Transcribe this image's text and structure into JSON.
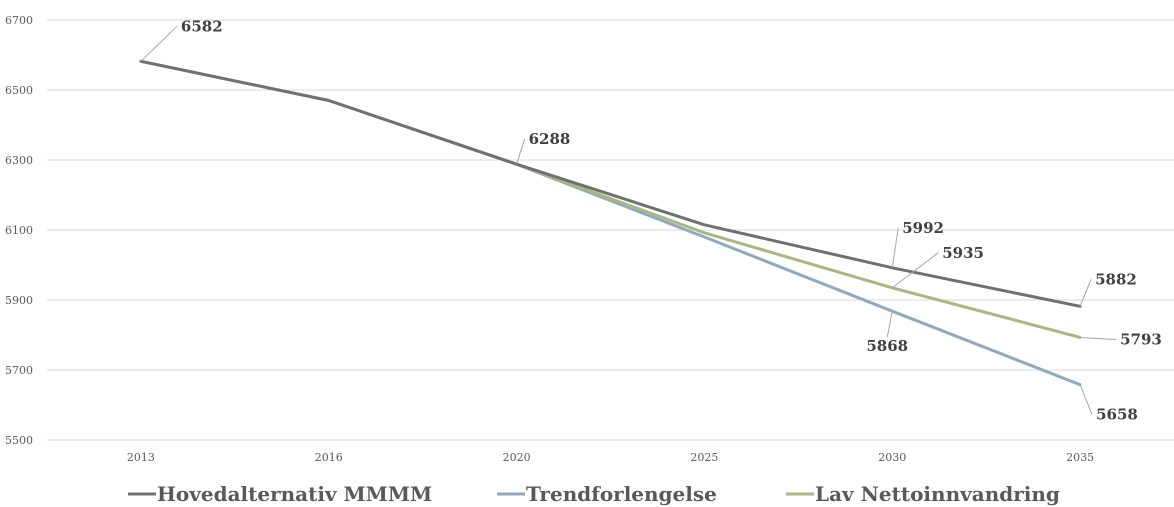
{
  "chart_data": {
    "type": "line",
    "title": "",
    "xlabel": "",
    "ylabel": "",
    "categories": [
      "2013",
      "2016",
      "2020",
      "2025",
      "2030",
      "2035"
    ],
    "y_ticks": [
      "6700",
      "6500",
      "6300",
      "6100",
      "5900",
      "5700",
      "5500"
    ],
    "ylim": [
      5500,
      6700
    ],
    "grid": true,
    "legend_position": "bottom",
    "series": [
      {
        "name": "Hovedalternativ MMMM",
        "color": "#707070",
        "values": [
          6582,
          6470,
          6288,
          6115,
          5992,
          5882
        ]
      },
      {
        "name": "Trendforlengelse",
        "color": "#8FA9BF",
        "values": [
          6582,
          6470,
          6288,
          6080,
          5868,
          5658
        ]
      },
      {
        "name": "Lav Nettoinnvandring",
        "color": "#A8B97F",
        "values": [
          null,
          null,
          6288,
          6092,
          5935,
          5793
        ]
      }
    ],
    "data_labels": [
      {
        "text": "6582",
        "series": 1,
        "index": 0
      },
      {
        "text": "6288",
        "series": 0,
        "index": 2
      },
      {
        "text": "5992",
        "series": 0,
        "index": 4
      },
      {
        "text": "5935",
        "series": 2,
        "index": 4
      },
      {
        "text": "5868",
        "series": 1,
        "index": 4
      },
      {
        "text": "5882",
        "series": 0,
        "index": 5
      },
      {
        "text": "5793",
        "series": 2,
        "index": 5
      },
      {
        "text": "5658",
        "series": 1,
        "index": 5
      }
    ]
  }
}
